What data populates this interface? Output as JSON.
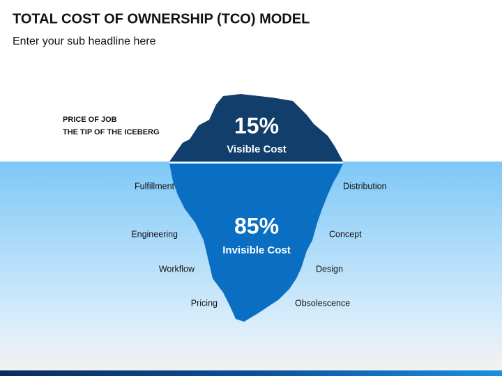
{
  "header": {
    "title": "TOTAL COST OF OWNERSHIP (TCO) MODEL",
    "subtitle": "Enter your sub headline here"
  },
  "tip": {
    "note": [
      "PRICE OF JOB",
      "THE TIP OF THE ICEBERG"
    ],
    "percent": "15%",
    "caption": "Visible Cost"
  },
  "base": {
    "percent": "85%",
    "caption": "Invisible Cost"
  },
  "left_labels": [
    "Fulfillment",
    "Engineering",
    "Workflow",
    "Pricing"
  ],
  "right_labels": [
    "Distribution",
    "Concept",
    "Design",
    "Obsolescence"
  ]
}
